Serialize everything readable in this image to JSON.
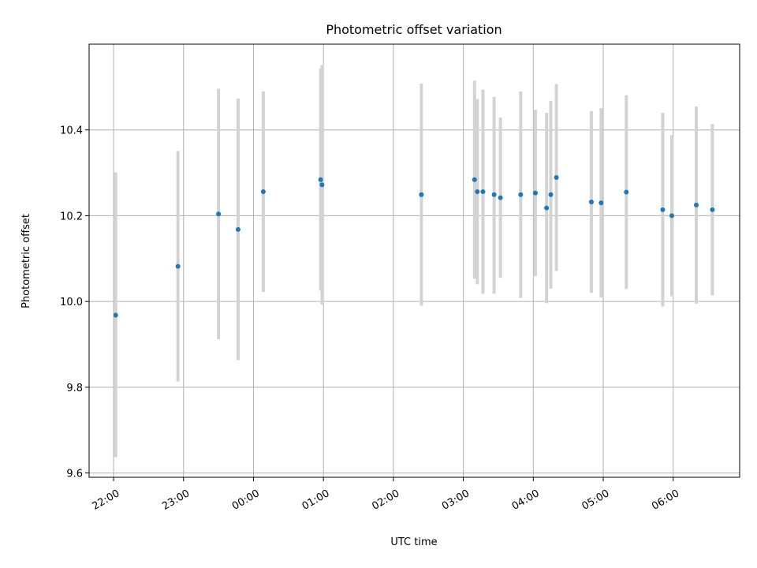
{
  "chart_data": {
    "type": "scatter",
    "title": "Photometric offset variation",
    "xlabel": "UTC time",
    "ylabel": "Photometric offset",
    "x_unit": "hours",
    "xlim": [
      -2.35,
      6.95
    ],
    "ylim": [
      9.59,
      10.6
    ],
    "xticks": [
      {
        "value": -2,
        "label": "22:00"
      },
      {
        "value": -1,
        "label": "23:00"
      },
      {
        "value": 0,
        "label": "00:00"
      },
      {
        "value": 1,
        "label": "01:00"
      },
      {
        "value": 2,
        "label": "02:00"
      },
      {
        "value": 3,
        "label": "03:00"
      },
      {
        "value": 4,
        "label": "04:00"
      },
      {
        "value": 5,
        "label": "05:00"
      },
      {
        "value": 6,
        "label": "06:00"
      }
    ],
    "yticks": [
      {
        "value": 9.6,
        "label": "9.6"
      },
      {
        "value": 9.8,
        "label": "9.8"
      },
      {
        "value": 10.0,
        "label": "10.0"
      },
      {
        "value": 10.2,
        "label": "10.2"
      },
      {
        "value": 10.4,
        "label": "10.4"
      }
    ],
    "grid": true,
    "marker_color": "#1f77b4",
    "errorbar_color": "#d3d3d3",
    "points": [
      {
        "x": -1.97,
        "y": 9.968,
        "lo": 9.637,
        "hi": 10.301
      },
      {
        "x": -1.08,
        "y": 10.082,
        "lo": 9.813,
        "hi": 10.351
      },
      {
        "x": -0.5,
        "y": 10.204,
        "lo": 9.912,
        "hi": 10.496
      },
      {
        "x": -0.22,
        "y": 10.168,
        "lo": 9.863,
        "hi": 10.473
      },
      {
        "x": 0.14,
        "y": 10.256,
        "lo": 10.022,
        "hi": 10.49
      },
      {
        "x": 0.96,
        "y": 10.284,
        "lo": 10.025,
        "hi": 10.543
      },
      {
        "x": 0.98,
        "y": 10.272,
        "lo": 9.993,
        "hi": 10.551
      },
      {
        "x": 2.4,
        "y": 10.249,
        "lo": 9.99,
        "hi": 10.508
      },
      {
        "x": 3.16,
        "y": 10.284,
        "lo": 10.053,
        "hi": 10.515
      },
      {
        "x": 3.2,
        "y": 10.256,
        "lo": 10.04,
        "hi": 10.472
      },
      {
        "x": 3.28,
        "y": 10.256,
        "lo": 10.018,
        "hi": 10.494
      },
      {
        "x": 3.44,
        "y": 10.249,
        "lo": 10.018,
        "hi": 10.477
      },
      {
        "x": 3.53,
        "y": 10.242,
        "lo": 10.055,
        "hi": 10.429
      },
      {
        "x": 3.82,
        "y": 10.249,
        "lo": 10.008,
        "hi": 10.49
      },
      {
        "x": 4.03,
        "y": 10.253,
        "lo": 10.059,
        "hi": 10.447
      },
      {
        "x": 4.19,
        "y": 10.218,
        "lo": 9.996,
        "hi": 10.44
      },
      {
        "x": 4.25,
        "y": 10.249,
        "lo": 10.03,
        "hi": 10.468
      },
      {
        "x": 4.33,
        "y": 10.289,
        "lo": 10.071,
        "hi": 10.507
      },
      {
        "x": 4.83,
        "y": 10.232,
        "lo": 10.02,
        "hi": 10.444
      },
      {
        "x": 4.97,
        "y": 10.23,
        "lo": 10.009,
        "hi": 10.451
      },
      {
        "x": 5.33,
        "y": 10.255,
        "lo": 10.029,
        "hi": 10.481
      },
      {
        "x": 5.85,
        "y": 10.214,
        "lo": 9.988,
        "hi": 10.44
      },
      {
        "x": 5.98,
        "y": 10.2,
        "lo": 10.012,
        "hi": 10.388
      },
      {
        "x": 6.33,
        "y": 10.225,
        "lo": 9.995,
        "hi": 10.455
      },
      {
        "x": 6.56,
        "y": 10.214,
        "lo": 10.014,
        "hi": 10.414
      }
    ]
  }
}
